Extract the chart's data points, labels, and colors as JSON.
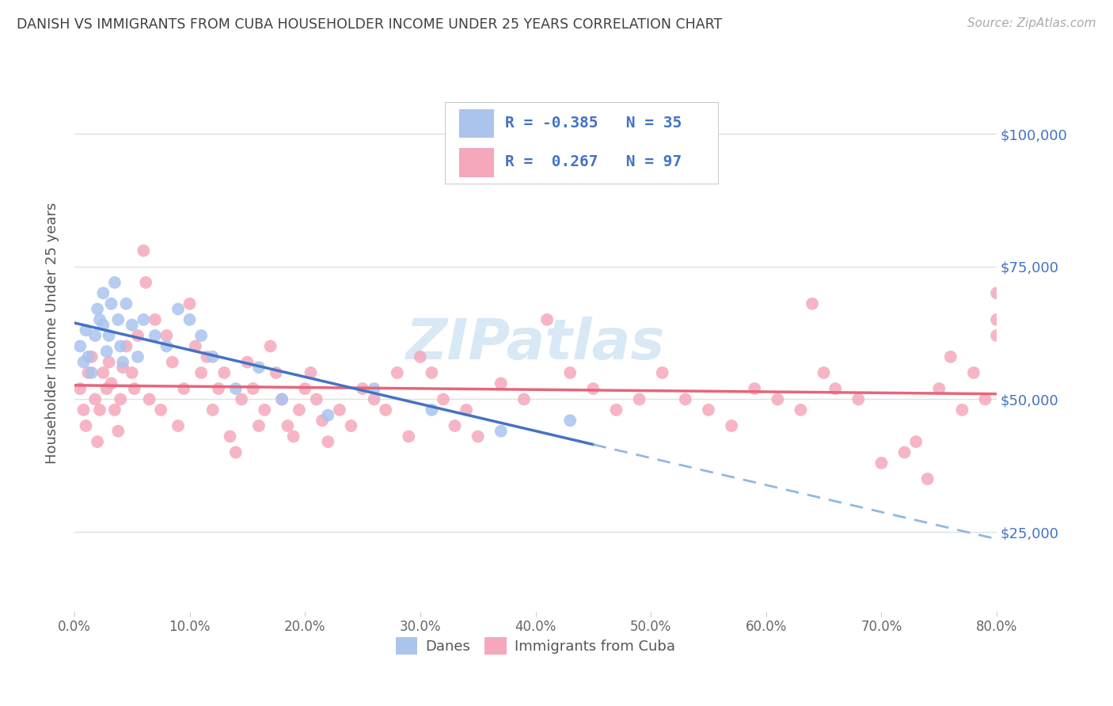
{
  "title": "DANISH VS IMMIGRANTS FROM CUBA HOUSEHOLDER INCOME UNDER 25 YEARS CORRELATION CHART",
  "source": "Source: ZipAtlas.com",
  "ylabel": "Householder Income Under 25 years",
  "xlim": [
    0.0,
    0.8
  ],
  "ylim": [
    10000,
    115000
  ],
  "xtick_labels": [
    "0.0%",
    "10.0%",
    "20.0%",
    "30.0%",
    "40.0%",
    "50.0%",
    "60.0%",
    "70.0%",
    "80.0%"
  ],
  "xtick_vals": [
    0.0,
    0.1,
    0.2,
    0.3,
    0.4,
    0.5,
    0.6,
    0.7,
    0.8
  ],
  "ytick_labels": [
    "$25,000",
    "$50,000",
    "$75,000",
    "$100,000"
  ],
  "ytick_vals": [
    25000,
    50000,
    75000,
    100000
  ],
  "danes_color": "#aac4ee",
  "cuba_color": "#f5a8bb",
  "danes_line_color": "#4472c4",
  "cuba_line_color": "#e8647a",
  "danes_dash_color": "#90b8e0",
  "legend_text_color": "#4472c4",
  "right_label_color": "#4472c4",
  "title_color": "#404040",
  "R_danes": -0.385,
  "N_danes": 35,
  "R_cuba": 0.267,
  "N_cuba": 97,
  "danes_x": [
    0.005,
    0.008,
    0.01,
    0.012,
    0.015,
    0.018,
    0.02,
    0.022,
    0.025,
    0.025,
    0.028,
    0.03,
    0.032,
    0.035,
    0.038,
    0.04,
    0.042,
    0.045,
    0.05,
    0.055,
    0.06,
    0.07,
    0.08,
    0.09,
    0.1,
    0.11,
    0.12,
    0.14,
    0.16,
    0.18,
    0.22,
    0.26,
    0.31,
    0.37,
    0.43
  ],
  "danes_y": [
    60000,
    57000,
    63000,
    58000,
    55000,
    62000,
    67000,
    65000,
    70000,
    64000,
    59000,
    62000,
    68000,
    72000,
    65000,
    60000,
    57000,
    68000,
    64000,
    58000,
    65000,
    62000,
    60000,
    67000,
    65000,
    62000,
    58000,
    52000,
    56000,
    50000,
    47000,
    52000,
    48000,
    44000,
    46000
  ],
  "cuba_x": [
    0.005,
    0.008,
    0.01,
    0.012,
    0.015,
    0.018,
    0.02,
    0.022,
    0.025,
    0.028,
    0.03,
    0.032,
    0.035,
    0.038,
    0.04,
    0.042,
    0.045,
    0.05,
    0.052,
    0.055,
    0.06,
    0.062,
    0.065,
    0.07,
    0.075,
    0.08,
    0.085,
    0.09,
    0.095,
    0.1,
    0.105,
    0.11,
    0.115,
    0.12,
    0.125,
    0.13,
    0.135,
    0.14,
    0.145,
    0.15,
    0.155,
    0.16,
    0.165,
    0.17,
    0.175,
    0.18,
    0.185,
    0.19,
    0.195,
    0.2,
    0.205,
    0.21,
    0.215,
    0.22,
    0.23,
    0.24,
    0.25,
    0.26,
    0.27,
    0.28,
    0.29,
    0.3,
    0.31,
    0.32,
    0.33,
    0.34,
    0.35,
    0.37,
    0.39,
    0.41,
    0.43,
    0.45,
    0.47,
    0.49,
    0.51,
    0.53,
    0.55,
    0.57,
    0.59,
    0.61,
    0.63,
    0.64,
    0.65,
    0.66,
    0.68,
    0.7,
    0.72,
    0.73,
    0.74,
    0.75,
    0.76,
    0.77,
    0.78,
    0.79,
    0.8,
    0.8,
    0.8
  ],
  "cuba_y": [
    52000,
    48000,
    45000,
    55000,
    58000,
    50000,
    42000,
    48000,
    55000,
    52000,
    57000,
    53000,
    48000,
    44000,
    50000,
    56000,
    60000,
    55000,
    52000,
    62000,
    78000,
    72000,
    50000,
    65000,
    48000,
    62000,
    57000,
    45000,
    52000,
    68000,
    60000,
    55000,
    58000,
    48000,
    52000,
    55000,
    43000,
    40000,
    50000,
    57000,
    52000,
    45000,
    48000,
    60000,
    55000,
    50000,
    45000,
    43000,
    48000,
    52000,
    55000,
    50000,
    46000,
    42000,
    48000,
    45000,
    52000,
    50000,
    48000,
    55000,
    43000,
    58000,
    55000,
    50000,
    45000,
    48000,
    43000,
    53000,
    50000,
    65000,
    55000,
    52000,
    48000,
    50000,
    55000,
    50000,
    48000,
    45000,
    52000,
    50000,
    48000,
    68000,
    55000,
    52000,
    50000,
    38000,
    40000,
    42000,
    35000,
    52000,
    58000,
    48000,
    55000,
    50000,
    65000,
    62000,
    70000
  ],
  "background_color": "#ffffff",
  "grid_color": "#e0e0e0",
  "watermark": "ZIPatlas",
  "watermark_color": "#d8e8f5"
}
